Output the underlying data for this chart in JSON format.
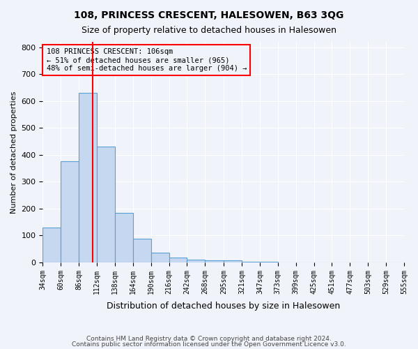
{
  "title": "108, PRINCESS CRESCENT, HALESOWEN, B63 3QG",
  "subtitle": "Size of property relative to detached houses in Halesowen",
  "xlabel": "Distribution of detached houses by size in Halesowen",
  "ylabel": "Number of detached properties",
  "bar_color": "#c5d8f0",
  "bar_edge_color": "#5a9fd4",
  "vline_x": 106,
  "vline_color": "red",
  "annotation_lines": [
    "108 PRINCESS CRESCENT: 106sqm",
    "← 51% of detached houses are smaller (965)",
    "48% of semi-detached houses are larger (904) →"
  ],
  "bin_edges": [
    34,
    60,
    86,
    112,
    138,
    164,
    190,
    216,
    242,
    268,
    295,
    321,
    347,
    373,
    399,
    425,
    451,
    477,
    503,
    529,
    555
  ],
  "bar_heights": [
    130,
    375,
    630,
    430,
    185,
    88,
    35,
    18,
    10,
    8,
    8,
    3,
    2,
    1,
    1,
    0,
    0,
    0,
    0,
    0
  ],
  "ylim": [
    0,
    820
  ],
  "background_color": "#f0f4fa",
  "grid_color": "#ffffff",
  "footer_line1": "Contains HM Land Registry data © Crown copyright and database right 2024.",
  "footer_line2": "Contains public sector information licensed under the Open Government Licence v3.0."
}
